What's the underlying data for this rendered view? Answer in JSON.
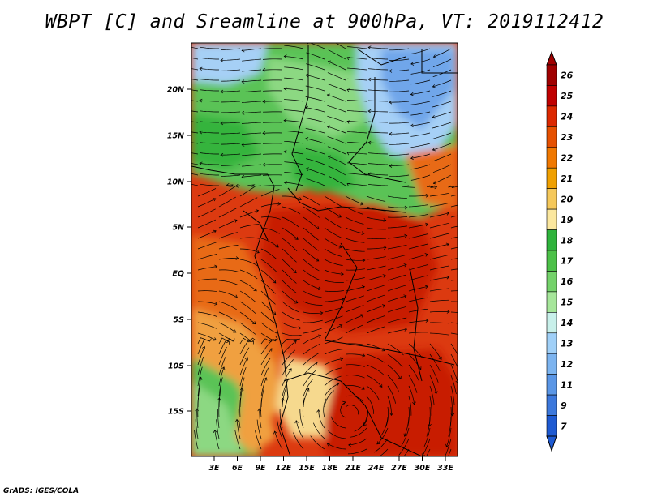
{
  "title": "WBPT [C] and Sreamline at 900hPa, VT: 2019112412",
  "credit": "GrADS: IGES/COLA",
  "map": {
    "lat_labels": [
      "20N",
      "15N",
      "10N",
      "5N",
      "EQ",
      "5S",
      "10S",
      "15S"
    ],
    "lon_labels": [
      "3E",
      "6E",
      "9E",
      "12E",
      "15E",
      "18E",
      "21E",
      "24E",
      "27E",
      "30E",
      "33E"
    ]
  },
  "colorbar": {
    "labels": [
      "26",
      "25",
      "24",
      "23",
      "22",
      "21",
      "20",
      "19",
      "18",
      "17",
      "16",
      "15",
      "14",
      "13",
      "12",
      "11",
      "9",
      "7"
    ],
    "colors": [
      "#a00000",
      "#c00000",
      "#dc2800",
      "#e65000",
      "#f07800",
      "#f0a000",
      "#f5c85a",
      "#fbe79e",
      "#2fb43c",
      "#4cc148",
      "#74d26a",
      "#a6e69a",
      "#c8f0ea",
      "#a0d0f8",
      "#7cb4f0",
      "#5a96e6",
      "#3c78dc",
      "#1e5ad2"
    ]
  },
  "field_colors": {
    "red_dark": "#c81e00",
    "red": "#dc3a10",
    "orange": "#e86a18",
    "orange_light": "#f0a040",
    "yellow": "#f6d98e",
    "green_dark": "#34b43e",
    "green": "#5ac356",
    "green_light": "#8cd882",
    "cyan_light": "#cdeef0",
    "blue_light": "#a6d0f6",
    "blue": "#6fa6ea"
  }
}
